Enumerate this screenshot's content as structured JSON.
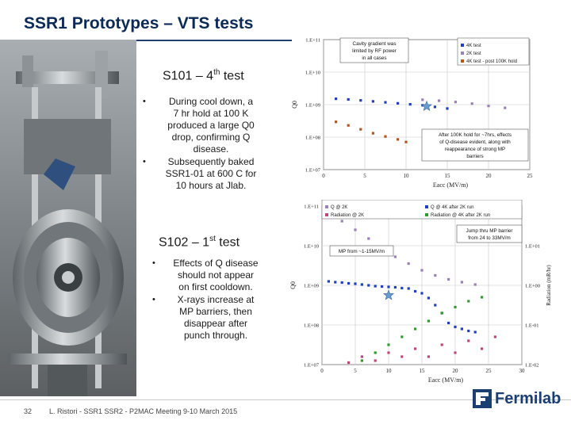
{
  "title": "SSR1 Prototypes – VTS tests",
  "s101": {
    "heading_main": "S101 – 4",
    "heading_sup": "th",
    "heading_tail": " test",
    "bullets": [
      [
        "During cool down, a",
        "7 hr hold at 100 K",
        "produced a large Q0",
        "drop, confirming Q",
        "disease."
      ],
      [
        "Subsequently baked",
        "SSR1-01 at 600 C for",
        "10 hours at Jlab."
      ]
    ]
  },
  "s102": {
    "heading_main": "S102 – 1",
    "heading_sup": "st",
    "heading_tail": " test",
    "bullets": [
      [
        "Effects of Q disease",
        "should not appear",
        "on first cooldown."
      ],
      [
        "X-rays increase at",
        "MP barriers, then",
        "disappear after",
        "punch through."
      ]
    ]
  },
  "bullet_glyph": "•",
  "footer": {
    "page": "32",
    "text": "L. Ristori - SSR1 SSR2 - P2MAC Meeting 9-10 March 2015",
    "logo": "Fermilab"
  },
  "chart_data": [
    {
      "type": "scatter",
      "title": "",
      "xlabel": "Eacc (MV/m)",
      "ylabel": "Q0",
      "xlim": [
        0,
        25
      ],
      "xticks": [
        "0",
        "5",
        "10",
        "15",
        "20",
        "25"
      ],
      "yscale": "log",
      "ylim_exp": [
        7,
        11
      ],
      "yticks": [
        "1.E+07",
        "1.E+08",
        "1.E+09",
        "1.E+10",
        "1.E+11"
      ],
      "grid": true,
      "legend_position": "top-right",
      "legend": [
        {
          "name": "4K test",
          "color": "#1f3fbf"
        },
        {
          "name": "2K test",
          "color": "#9a7fb8"
        },
        {
          "name": "4K test - post 100K hold",
          "color": "#b5541c"
        }
      ],
      "series": [
        {
          "name": "4K test",
          "color": "#1f3fbf",
          "x": [
            1.5,
            3,
            4.5,
            6,
            7.5,
            9,
            10.5,
            12,
            13.5,
            15
          ],
          "log_y": [
            9.18,
            9.16,
            9.13,
            9.1,
            9.07,
            9.04,
            9.01,
            8.98,
            8.93,
            8.88
          ]
        },
        {
          "name": "2K test",
          "color": "#9a7fb8",
          "x": [
            12,
            14,
            16,
            18,
            20,
            22
          ],
          "log_y": [
            9.15,
            9.12,
            9.08,
            9.03,
            8.96,
            8.9
          ]
        },
        {
          "name": "4K test - post 100K hold",
          "color": "#b5541c",
          "x": [
            1.5,
            3,
            4.5,
            6,
            7.5,
            9,
            10
          ],
          "log_y": [
            8.47,
            8.36,
            8.24,
            8.12,
            8.02,
            7.93,
            7.85
          ]
        }
      ],
      "star": {
        "x": 12.5,
        "log_y": 8.95,
        "color": "#6a9bd0"
      },
      "annotations": [
        {
          "lines": [
            "Cavity gradient was",
            "limited by RF power",
            "in all cases"
          ],
          "where": "top-center"
        },
        {
          "lines": [
            "After 100K hold for ~7hrs, effects",
            "of Q-disease evident, along with",
            "reappearance of strong MP",
            "barriers"
          ],
          "where": "lower-right"
        }
      ]
    },
    {
      "type": "scatter",
      "title": "",
      "xlabel": "Eacc (MV/m)",
      "ylabel": "Q0",
      "y2label": "Radiation (mR/hr)",
      "xlim": [
        0,
        30
      ],
      "xticks": [
        "0",
        "5",
        "10",
        "15",
        "20",
        "25",
        "30"
      ],
      "yscale": "log",
      "ylim_exp": [
        7,
        11
      ],
      "yticks": [
        "1.E+07",
        "1.E+08",
        "1.E+09",
        "1.E+10",
        "1.E+11"
      ],
      "y2ticks": [
        "1.E-02",
        "1.E-01",
        "1.E+00",
        "1.E+01"
      ],
      "grid": true,
      "legend_position": "top",
      "legend": [
        {
          "name": "Q @ 2K",
          "color": "#9a7fb8"
        },
        {
          "name": "Q @ 4K after 2K run",
          "color": "#1f3fbf"
        },
        {
          "name": "Radiation @ 2K",
          "color": "#c0457a"
        },
        {
          "name": "Radiation @ 4K after 2K run",
          "color": "#2f9a2f"
        }
      ],
      "series": [
        {
          "name": "Q @ 2K",
          "color": "#9a7fb8",
          "x": [
            1,
            3,
            5,
            7,
            9,
            11,
            13,
            15,
            17,
            19,
            21,
            23
          ],
          "log_y": [
            10.85,
            10.62,
            10.4,
            10.18,
            9.95,
            9.72,
            9.55,
            9.38,
            9.25,
            9.15,
            9.08,
            9.02
          ]
        },
        {
          "name": "Q @ 4K after 2K run",
          "color": "#1f3fbf",
          "x": [
            1,
            2,
            3,
            4,
            5,
            6,
            7,
            8,
            9,
            10,
            11,
            12,
            13,
            14,
            15,
            16,
            17,
            18,
            19,
            20,
            21,
            22,
            23
          ],
          "log_y": [
            9.1,
            9.08,
            9.07,
            9.05,
            9.04,
            9.02,
            9.0,
            8.98,
            8.97,
            8.96,
            8.95,
            8.93,
            8.92,
            8.85,
            8.8,
            8.68,
            8.5,
            8.3,
            8.05,
            7.95,
            7.9,
            7.85,
            7.82
          ]
        },
        {
          "name": "Radiation @ 2K",
          "color": "#c0457a",
          "x": [
            4,
            6,
            8,
            10,
            12,
            14,
            16,
            18,
            20,
            22,
            24,
            26
          ],
          "log_y": [
            7.05,
            7.2,
            7.1,
            7.3,
            7.2,
            7.4,
            7.2,
            7.5,
            7.3,
            7.6,
            7.4,
            7.7
          ]
        },
        {
          "name": "Radiation @ 4K after 2K run",
          "color": "#2f9a2f",
          "x": [
            6,
            8,
            10,
            12,
            14,
            16,
            18,
            20,
            22,
            24
          ],
          "log_y": [
            7.1,
            7.3,
            7.5,
            7.7,
            7.9,
            8.1,
            8.3,
            8.45,
            8.6,
            8.7
          ]
        }
      ],
      "star": {
        "x": 10,
        "log_y": 8.75,
        "color": "#6a9bd0"
      },
      "annotations": [
        {
          "lines": [
            "MP from ~1-15MV/m"
          ],
          "where": "upper-left"
        },
        {
          "lines": [
            "Jump thru MP barrier",
            "from 24 to 33MV/m"
          ],
          "where": "upper-right"
        }
      ]
    }
  ]
}
